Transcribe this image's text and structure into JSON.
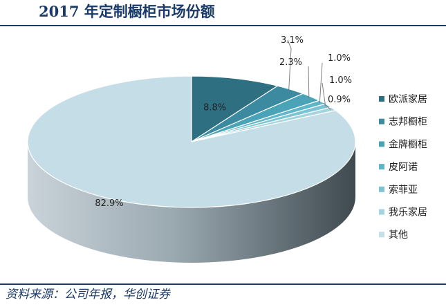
{
  "header": {
    "title": "2017 年定制橱柜市场份额"
  },
  "footer": {
    "source": "资料来源：公司年报，华创证券"
  },
  "chart_data": {
    "type": "pie",
    "title": "2017 年定制橱柜市场份额",
    "legend_position": "right",
    "slices": [
      {
        "name": "欧派家居",
        "value": 8.8,
        "label": "8.8%",
        "color": "#2e6f82"
      },
      {
        "name": "志邦橱柜",
        "value": 3.1,
        "label": "3.1%",
        "color": "#3b8aa0"
      },
      {
        "name": "金牌橱柜",
        "value": 2.3,
        "label": "2.3%",
        "color": "#4ba3b8"
      },
      {
        "name": "皮阿诺",
        "value": 1.0,
        "label": "1.0%",
        "color": "#5fb6c9"
      },
      {
        "name": "索菲亚",
        "value": 1.0,
        "label": "1.0%",
        "color": "#7cc3d3"
      },
      {
        "name": "我乐家居",
        "value": 0.9,
        "label": "0.9%",
        "color": "#a3d4df"
      },
      {
        "name": "其他",
        "value": 82.9,
        "label": "82.9%",
        "color": "#c5dde6"
      }
    ]
  }
}
